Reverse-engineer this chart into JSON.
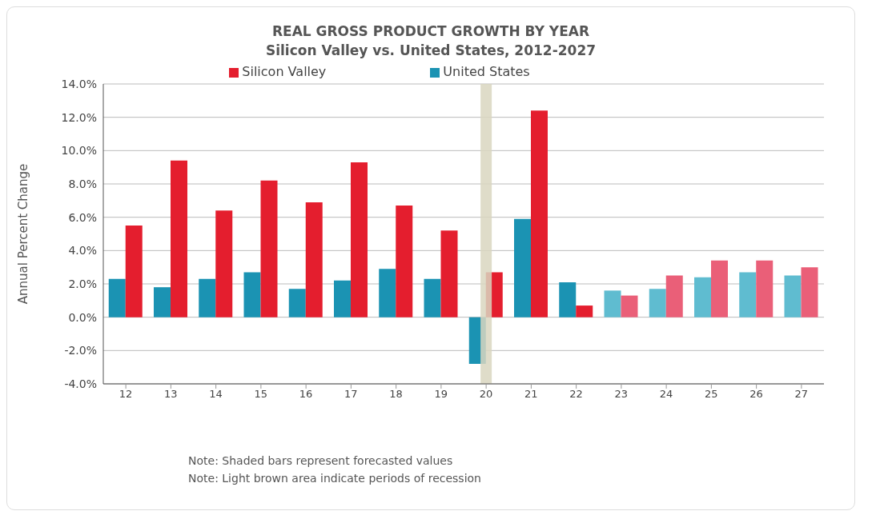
{
  "chart_data": {
    "type": "bar",
    "title": "REAL GROSS PRODUCT GROWTH BY YEAR",
    "subtitle": "Silicon Valley vs. United States, 2012-2027",
    "ylabel": "Annual Percent Change",
    "categories": [
      "12",
      "13",
      "14",
      "15",
      "16",
      "17",
      "18",
      "19",
      "20",
      "21",
      "22",
      "23",
      "24",
      "25",
      "26",
      "27"
    ],
    "series": [
      {
        "name": "United States",
        "color": "#1b93b3",
        "values": [
          2.3,
          1.8,
          2.3,
          2.7,
          1.7,
          2.2,
          2.9,
          2.3,
          -2.8,
          5.9,
          2.1,
          1.6,
          1.7,
          2.4,
          2.7,
          2.5
        ],
        "colors": [
          "#1b93b3",
          "#1b93b3",
          "#1b93b3",
          "#1b93b3",
          "#1b93b3",
          "#1b93b3",
          "#1b93b3",
          "#1b93b3",
          "#1b93b3",
          "#1b93b3",
          "#1b93b3",
          "#5fbcd0",
          "#5fbcd0",
          "#5fbcd0",
          "#5fbcd0",
          "#5fbcd0"
        ]
      },
      {
        "name": "Silicon Valley",
        "color": "#e41e2e",
        "values": [
          5.5,
          9.4,
          6.4,
          8.2,
          6.9,
          9.3,
          6.7,
          5.2,
          2.7,
          12.4,
          0.7,
          1.3,
          2.5,
          3.4,
          3.4,
          3.0
        ],
        "colors": [
          "#e41e2e",
          "#e41e2e",
          "#e41e2e",
          "#e41e2e",
          "#e41e2e",
          "#e41e2e",
          "#e41e2e",
          "#e41e2e",
          "#e41e2e",
          "#e41e2e",
          "#e41e2e",
          "#ea5f78",
          "#ea5f78",
          "#ea5f78",
          "#ea5f78",
          "#ea5f78"
        ]
      }
    ],
    "ylim": [
      -4,
      14
    ],
    "yticks": [
      {
        "value": -4,
        "label": "-4.0%"
      },
      {
        "value": -2,
        "label": "-2.0%"
      },
      {
        "value": 0,
        "label": "0.0%"
      },
      {
        "value": 2,
        "label": "2.0%"
      },
      {
        "value": 4,
        "label": "4.0%"
      },
      {
        "value": 6,
        "label": "6.0%"
      },
      {
        "value": 8,
        "label": "8.0%"
      },
      {
        "value": 10,
        "label": "10.0%"
      },
      {
        "value": 12,
        "label": "12.0%"
      },
      {
        "value": 14,
        "label": "14.0%"
      }
    ],
    "grid": "y",
    "legend": "top",
    "ref_lines": [
      {
        "axis": "x",
        "value": "20",
        "color": "#d9d6c0"
      }
    ],
    "annotations": [
      "Note: Shaded bars represent forecasted values",
      "Note: Light brown area indicate periods of recession"
    ]
  }
}
